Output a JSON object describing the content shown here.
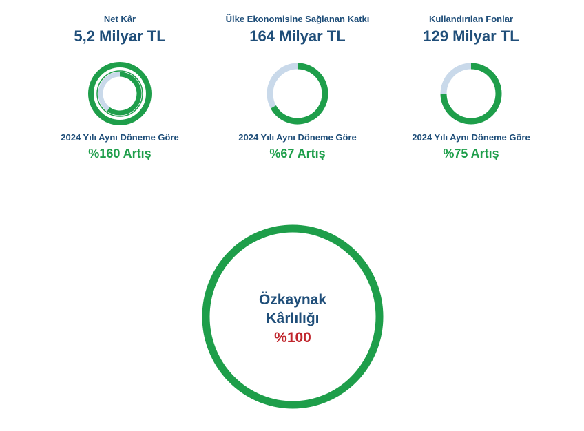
{
  "metrics": [
    {
      "label": "Net Kâr",
      "value": "5,2 Milyar TL",
      "comparison": "2024 Yılı Aynı Döneme Göre",
      "change": "%160 Artış",
      "change_pct": 160
    },
    {
      "label": "Ülke Ekonomisine Sağlanan Katkı",
      "value": "164 Milyar TL",
      "comparison": "2024 Yılı Aynı Döneme Göre",
      "change": "%67 Artış",
      "change_pct": 67
    },
    {
      "label": "Kullandırılan Fonlar",
      "value": "129 Milyar TL",
      "comparison": "2024 Yılı Aynı Döneme Göre",
      "change": "%75 Artış",
      "change_pct": 75
    }
  ],
  "highlight": {
    "line1": "Özkaynak",
    "line2": "Kârlılığı",
    "value": "%100",
    "value_pct": 100
  },
  "colors": {
    "primary": "#1f4e79",
    "increase": "#1e9e4a",
    "track": "#c9d9ea",
    "highlight_value": "#c0262d"
  },
  "chart_data": {
    "type": "pie",
    "categories": [
      "Net Kâr",
      "Ülke Ekonomisine Sağlanan Katkı",
      "Kullandırılan Fonlar",
      "Özkaynak Kârlılığı"
    ],
    "values": [
      160,
      67,
      75,
      100
    ],
    "unit": "%"
  }
}
